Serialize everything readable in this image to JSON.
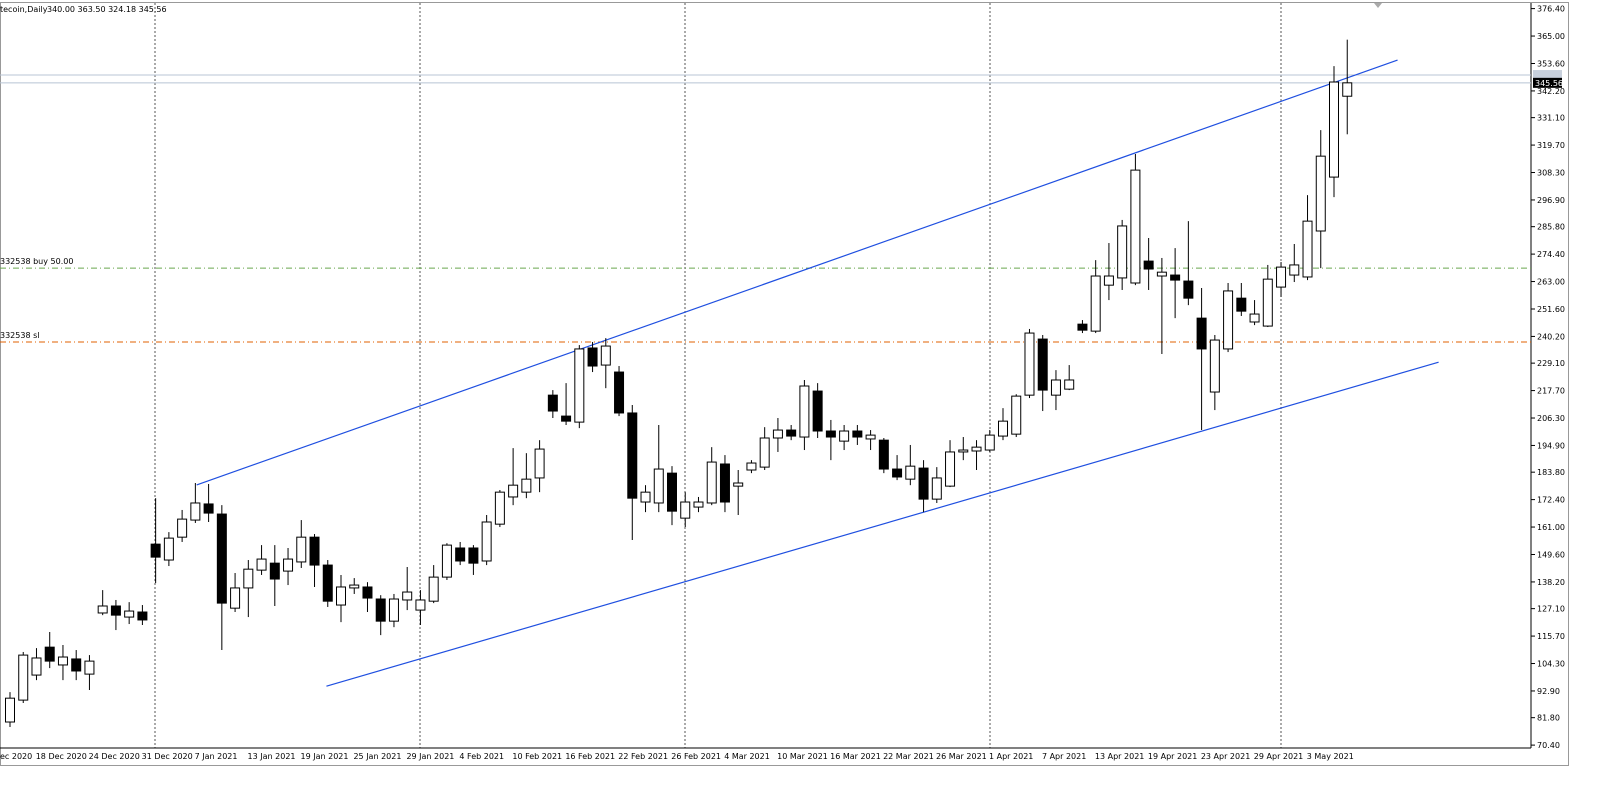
{
  "chart_data": {
    "type": "candlestick",
    "title": "tecoin,Daily",
    "info": "340.00 363.50 324.18 345.56",
    "categories": [
      "ec 2020",
      null,
      null,
      "18 Dec 2020",
      null,
      null,
      null,
      "24 Dec 2020",
      null,
      null,
      null,
      "31 Dec 2020",
      null,
      null,
      null,
      "7 Jan 2021",
      null,
      null,
      null,
      "13 Jan 2021",
      null,
      null,
      null,
      "19 Jan 2021",
      null,
      null,
      null,
      "25 Jan 2021",
      null,
      null,
      null,
      "29 Jan 2021",
      null,
      null,
      null,
      "4 Feb 2021",
      null,
      null,
      null,
      "10 Feb 2021",
      null,
      null,
      null,
      "16 Feb 2021",
      null,
      null,
      null,
      "22 Feb 2021",
      null,
      null,
      null,
      "26 Feb 2021",
      null,
      null,
      null,
      "4 Mar 2021",
      null,
      null,
      null,
      "10 Mar 2021",
      null,
      null,
      null,
      "16 Mar 2021",
      null,
      null,
      null,
      "22 Mar 2021",
      null,
      null,
      null,
      "26 Mar 2021",
      null,
      null,
      null,
      "1 Apr 2021",
      null,
      null,
      null,
      "7 Apr 2021",
      null,
      null,
      null,
      "13 Apr 2021",
      null,
      null,
      null,
      "19 Apr 2021",
      null,
      null,
      null,
      "23 Apr 2021",
      null,
      null,
      null,
      "29 Apr 2021",
      null,
      null,
      null,
      "3 May 2021",
      null,
      null
    ],
    "open": [
      80.0,
      89.1,
      99.5,
      111.1,
      103.7,
      106.2,
      99.9,
      125.3,
      128.2,
      123.6,
      125.7,
      153.9,
      147.3,
      156.8,
      163.9,
      170.6,
      166.4,
      127.3,
      135.7,
      143.1,
      146.0,
      142.7,
      146.5,
      156.8,
      145.2,
      128.6,
      135.7,
      136.1,
      131.1,
      121.9,
      130.7,
      126.5,
      130.2,
      140.2,
      152.3,
      152.3,
      146.9,
      162.2,
      173.5,
      175.5,
      181.4,
      215.8,
      207.1,
      204.6,
      235.4,
      228.3,
      225.4,
      208.4,
      171.4,
      171.0,
      183.4,
      164.7,
      169.3,
      171.0,
      187.2,
      178.0,
      184.7,
      185.9,
      198.0,
      201.3,
      198.4,
      217.5,
      200.9,
      196.7,
      200.9,
      197.6,
      197.1,
      185.1,
      180.9,
      185.5,
      172.6,
      178.0,
      192.2,
      192.6,
      193.0,
      198.8,
      199.6,
      215.8,
      239.1,
      215.8,
      218.3,
      245.3,
      242.4,
      261.5,
      264.5,
      262.4,
      271.5,
      265.3,
      265.7,
      263.2,
      247.8,
      217.1,
      235.0,
      256.1,
      246.2,
      244.5,
      260.7,
      265.7,
      264.9,
      284.0,
      306.4,
      340.0
    ],
    "high": [
      92.4,
      109.1,
      110.7,
      117.4,
      112.0,
      109.9,
      107.8,
      134.8,
      130.7,
      129.8,
      128.6,
      173.0,
      158.9,
      168.1,
      179.3,
      178.9,
      170.1,
      141.9,
      147.3,
      153.5,
      153.5,
      152.3,
      163.9,
      158.1,
      147.3,
      141.1,
      139.8,
      138.1,
      132.7,
      133.2,
      144.4,
      134.8,
      145.2,
      154.3,
      154.8,
      153.5,
      166.0,
      176.4,
      193.8,
      191.7,
      197.1,
      217.9,
      220.8,
      236.6,
      237.9,
      239.5,
      227.9,
      211.7,
      178.4,
      203.4,
      186.3,
      175.5,
      173.5,
      194.2,
      190.9,
      184.7,
      188.8,
      202.5,
      206.3,
      203.4,
      222.1,
      220.8,
      205.5,
      203.4,
      203.4,
      201.3,
      198.0,
      190.9,
      195.1,
      188.8,
      185.9,
      197.1,
      198.4,
      197.1,
      201.3,
      210.4,
      216.2,
      243.3,
      240.8,
      226.2,
      228.3,
      247.0,
      271.9,
      279.0,
      288.6,
      316.0,
      281.1,
      272.8,
      276.9,
      288.1,
      260.3,
      240.8,
      262.4,
      262.4,
      255.3,
      269.9,
      271.1,
      278.6,
      298.9,
      325.9,
      352.5,
      363.5
    ],
    "low": [
      77.9,
      87.9,
      97.4,
      102.4,
      97.4,
      97.4,
      93.3,
      124.4,
      118.2,
      120.7,
      120.3,
      137.7,
      144.8,
      154.8,
      162.7,
      163.1,
      109.9,
      125.7,
      123.6,
      141.1,
      128.2,
      136.9,
      144.0,
      136.1,
      127.8,
      121.5,
      133.2,
      125.7,
      116.1,
      119.4,
      126.5,
      120.3,
      129.4,
      139.0,
      145.2,
      141.1,
      145.2,
      161.0,
      170.1,
      173.0,
      175.5,
      206.3,
      203.4,
      202.1,
      225.4,
      218.7,
      207.1,
      155.6,
      167.2,
      167.2,
      161.8,
      161.0,
      167.2,
      170.1,
      167.2,
      166.0,
      183.4,
      184.7,
      192.2,
      197.1,
      193.0,
      198.0,
      188.8,
      193.0,
      195.1,
      193.0,
      183.4,
      180.5,
      178.4,
      167.2,
      171.0,
      177.6,
      188.8,
      184.7,
      192.2,
      197.1,
      198.4,
      214.6,
      209.2,
      209.6,
      217.9,
      241.6,
      241.6,
      255.3,
      259.5,
      261.5,
      259.5,
      232.9,
      247.8,
      253.2,
      201.3,
      209.6,
      233.7,
      248.7,
      244.9,
      244.1,
      256.6,
      262.8,
      263.6,
      268.6,
      298.1,
      324.18
    ],
    "close": [
      89.9,
      107.8,
      106.6,
      105.3,
      107.0,
      101.2,
      105.3,
      128.2,
      124.4,
      126.1,
      122.4,
      148.5,
      156.4,
      164.3,
      171.0,
      166.8,
      129.4,
      135.7,
      143.5,
      147.7,
      139.4,
      147.7,
      156.8,
      145.2,
      130.2,
      136.1,
      136.9,
      131.5,
      121.9,
      131.1,
      134.0,
      130.7,
      140.2,
      153.5,
      146.9,
      146.0,
      163.1,
      175.5,
      178.4,
      180.9,
      193.4,
      209.2,
      205.0,
      235.0,
      227.9,
      236.2,
      208.4,
      173.0,
      175.5,
      185.1,
      167.6,
      171.4,
      171.4,
      188.0,
      171.4,
      179.3,
      187.6,
      198.0,
      201.3,
      198.8,
      219.6,
      200.9,
      198.4,
      200.9,
      198.4,
      199.2,
      185.1,
      181.8,
      186.3,
      172.6,
      181.4,
      192.2,
      193.0,
      194.2,
      199.2,
      205.0,
      215.4,
      241.6,
      217.9,
      222.1,
      222.1,
      242.8,
      265.3,
      265.3,
      286.1,
      309.3,
      268.2,
      266.9,
      263.6,
      256.1,
      235.0,
      238.7,
      259.1,
      250.7,
      249.5,
      264.0,
      269.0,
      269.9,
      288.1,
      315.1,
      345.9,
      345.56
    ],
    "up_color": "#ffffff",
    "down_color": "#000000",
    "ylim": [
      69.2,
      377.9
    ],
    "yticks": [
      {
        "value": 376.4,
        "label": "376.40"
      },
      {
        "value": 365,
        "label": "365.00"
      },
      {
        "value": 353.6,
        "label": "353.60"
      },
      {
        "value": 342.2,
        "label": "342.20"
      },
      {
        "value": 331.1,
        "label": "331.10"
      },
      {
        "value": 319.7,
        "label": "319.70"
      },
      {
        "value": 308.3,
        "label": "308.30"
      },
      {
        "value": 296.9,
        "label": "296.90"
      },
      {
        "value": 285.8,
        "label": "285.80"
      },
      {
        "value": 274.4,
        "label": "274.40"
      },
      {
        "value": 263,
        "label": "263.00"
      },
      {
        "value": 251.6,
        "label": "251.60"
      },
      {
        "value": 240.2,
        "label": "240.20"
      },
      {
        "value": 229.1,
        "label": "229.10"
      },
      {
        "value": 217.7,
        "label": "217.70"
      },
      {
        "value": 206.3,
        "label": "206.30"
      },
      {
        "value": 194.9,
        "label": "194.90"
      },
      {
        "value": 183.8,
        "label": "183.80"
      },
      {
        "value": 172.4,
        "label": "172.40"
      },
      {
        "value": 161,
        "label": "161.00"
      },
      {
        "value": 149.6,
        "label": "149.60"
      },
      {
        "value": 138.2,
        "label": "138.20"
      },
      {
        "value": 127.1,
        "label": "127.10"
      },
      {
        "value": 115.7,
        "label": "115.70"
      },
      {
        "value": 104.3,
        "label": "104.30"
      },
      {
        "value": 92.9,
        "label": "92.90"
      },
      {
        "value": 81.8,
        "label": "81.80"
      },
      {
        "value": 70.4,
        "label": "70.40"
      }
    ],
    "hlines": [
      {
        "label": "332538 buy 50.00",
        "value": 268.6,
        "color": "#6aa84f"
      },
      {
        "label": "332538 sl",
        "value": 237.9,
        "color": "#e06000"
      }
    ],
    "bid": {
      "value": 345.56,
      "label": "345.56"
    },
    "ask": 348.8,
    "trendline_color": "#1f4fe0",
    "trendlines": [
      {
        "x": [
          14.1,
          104.8
        ],
        "y": [
          178.5,
          355.0
        ]
      },
      {
        "x": [
          23.9,
          107.9
        ],
        "y": [
          94.9,
          229.5
        ]
      }
    ]
  }
}
